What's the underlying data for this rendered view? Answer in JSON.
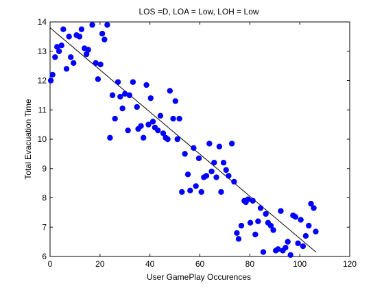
{
  "chart_data": {
    "type": "scatter",
    "title": "LOS =D, LOA = Low, LOH = Low",
    "xlabel": "User GamePlay Occurences",
    "ylabel": "Total Evacuation Time",
    "xlim": [
      0,
      120
    ],
    "ylim": [
      6,
      14
    ],
    "xticks": [
      "0",
      "20",
      "40",
      "60",
      "80",
      "100",
      "120"
    ],
    "yticks": [
      "6",
      "7",
      "8",
      "9",
      "10",
      "11",
      "12",
      "13",
      "14"
    ],
    "grid": false,
    "legend": "none",
    "colors": {
      "marker": "#0000ff",
      "fit_line": "#000000",
      "axes": "#000000"
    },
    "series": [
      {
        "marker": "filled-circle",
        "points": [
          [
            0.3,
            12.0
          ],
          [
            1.0,
            12.2
          ],
          [
            2.0,
            12.8
          ],
          [
            2.8,
            13.15
          ],
          [
            3.6,
            13.0
          ],
          [
            4.6,
            13.2
          ],
          [
            5.3,
            13.75
          ],
          [
            6.6,
            12.4
          ],
          [
            7.6,
            13.5
          ],
          [
            8.3,
            12.8
          ],
          [
            9.4,
            12.6
          ],
          [
            10.6,
            13.55
          ],
          [
            11.8,
            13.5
          ],
          [
            12.6,
            13.75
          ],
          [
            13.8,
            13.1
          ],
          [
            14.6,
            12.9
          ],
          [
            15.3,
            13.05
          ],
          [
            16.9,
            13.9
          ],
          [
            18.3,
            12.6
          ],
          [
            19.2,
            12.05
          ],
          [
            20.2,
            12.55
          ],
          [
            20.9,
            13.6
          ],
          [
            21.8,
            13.4
          ],
          [
            22.9,
            13.9
          ],
          [
            24.0,
            10.05
          ],
          [
            25.0,
            11.5
          ],
          [
            26.0,
            10.7
          ],
          [
            27.2,
            11.95
          ],
          [
            28.1,
            11.45
          ],
          [
            29.0,
            11.05
          ],
          [
            30.0,
            11.55
          ],
          [
            31.2,
            10.3
          ],
          [
            31.8,
            11.5
          ],
          [
            33.2,
            11.95
          ],
          [
            34.8,
            11.1
          ],
          [
            35.3,
            10.35
          ],
          [
            36.4,
            10.45
          ],
          [
            37.4,
            10.05
          ],
          [
            38.6,
            11.85
          ],
          [
            39.4,
            10.5
          ],
          [
            40.3,
            11.4
          ],
          [
            41.2,
            10.6
          ],
          [
            42.0,
            10.4
          ],
          [
            43.2,
            10.3
          ],
          [
            44.2,
            10.8
          ],
          [
            45.3,
            10.2
          ],
          [
            46.3,
            10.05
          ],
          [
            47.1,
            10.0
          ],
          [
            48.0,
            11.65
          ],
          [
            49.3,
            10.7
          ],
          [
            50.2,
            11.3
          ],
          [
            51.0,
            10.0
          ],
          [
            51.8,
            10.7
          ],
          [
            52.8,
            8.2
          ],
          [
            54.0,
            9.5
          ],
          [
            55.2,
            8.8
          ],
          [
            56.1,
            8.25
          ],
          [
            57.5,
            9.7
          ],
          [
            58.4,
            8.4
          ],
          [
            59.6,
            9.35
          ],
          [
            60.6,
            8.2
          ],
          [
            61.6,
            8.7
          ],
          [
            62.6,
            8.75
          ],
          [
            63.8,
            9.85
          ],
          [
            64.7,
            8.9
          ],
          [
            65.7,
            9.2
          ],
          [
            66.6,
            8.7
          ],
          [
            67.8,
            9.75
          ],
          [
            68.5,
            8.2
          ],
          [
            69.5,
            9.2
          ],
          [
            70.5,
            8.95
          ],
          [
            71.5,
            8.75
          ],
          [
            72.8,
            9.85
          ],
          [
            73.7,
            8.55
          ],
          [
            74.8,
            6.8
          ],
          [
            75.5,
            6.6
          ],
          [
            76.6,
            7.05
          ],
          [
            77.8,
            7.9
          ],
          [
            78.4,
            7.85
          ],
          [
            79.3,
            7.95
          ],
          [
            80.2,
            7.15
          ],
          [
            81.2,
            7.9
          ],
          [
            82.2,
            6.75
          ],
          [
            83.3,
            7.2
          ],
          [
            84.3,
            7.65
          ],
          [
            85.4,
            6.15
          ],
          [
            86.4,
            7.45
          ],
          [
            87.3,
            7.15
          ],
          [
            88.4,
            7.05
          ],
          [
            89.4,
            6.9
          ],
          [
            90.4,
            6.2
          ],
          [
            91.3,
            6.25
          ],
          [
            92.4,
            7.55
          ],
          [
            93.2,
            6.2
          ],
          [
            94.3,
            6.3
          ],
          [
            95.2,
            6.5
          ],
          [
            96.3,
            6.05
          ],
          [
            97.3,
            7.4
          ],
          [
            98.3,
            7.35
          ],
          [
            99.3,
            6.45
          ],
          [
            100.4,
            7.25
          ],
          [
            101.3,
            6.35
          ],
          [
            102.4,
            6.7
          ],
          [
            103.6,
            7.05
          ],
          [
            104.5,
            7.8
          ],
          [
            105.6,
            7.65
          ],
          [
            106.4,
            6.85
          ]
        ]
      }
    ],
    "fit_line": {
      "from": [
        0,
        13.8
      ],
      "to": [
        106.5,
        6.15
      ]
    }
  }
}
